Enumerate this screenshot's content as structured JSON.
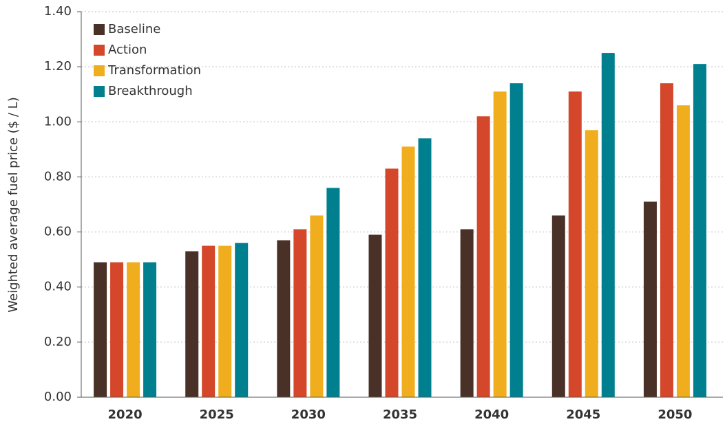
{
  "chart_data": {
    "type": "bar",
    "y_label": "Weighted average fuel price ($ / L)",
    "categories": [
      "2020",
      "2025",
      "2030",
      "2035",
      "2040",
      "2045",
      "2050"
    ],
    "series": [
      {
        "name": "Baseline",
        "color": "#4a3128",
        "values": [
          0.49,
          0.53,
          0.57,
          0.59,
          0.61,
          0.66,
          0.71
        ]
      },
      {
        "name": "Action",
        "color": "#d4472a",
        "values": [
          0.49,
          0.55,
          0.61,
          0.83,
          1.02,
          1.11,
          1.14
        ]
      },
      {
        "name": "Transformation",
        "color": "#f0ae1f",
        "values": [
          0.49,
          0.55,
          0.66,
          0.91,
          1.11,
          0.97,
          1.06
        ]
      },
      {
        "name": "Breakthrough",
        "color": "#007f8f",
        "values": [
          0.49,
          0.56,
          0.76,
          0.94,
          1.14,
          1.25,
          1.21
        ]
      }
    ],
    "ylim": [
      0,
      1.4
    ],
    "yticks": [
      {
        "value": 0,
        "label": "0.00"
      },
      {
        "value": 0.2,
        "label": "0.20"
      },
      {
        "value": 0.4,
        "label": "0.40"
      },
      {
        "value": 0.6,
        "label": "0.60"
      },
      {
        "value": 0.8,
        "label": "0.80"
      },
      {
        "value": 1.0,
        "label": "1.00"
      },
      {
        "value": 1.2,
        "label": "1.20"
      },
      {
        "value": 1.4,
        "label": "1.40"
      }
    ],
    "grid": true,
    "legend": "upper left"
  }
}
